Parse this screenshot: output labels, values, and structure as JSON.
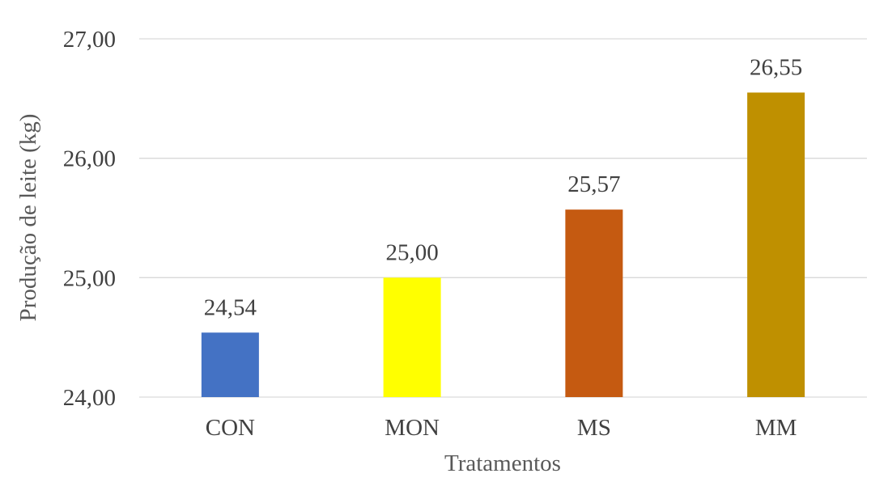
{
  "chart_data": {
    "type": "bar",
    "title": "",
    "xlabel": "Tratamentos",
    "ylabel": "Produção de leite (kg)",
    "categories": [
      "CON",
      "MON",
      "MS",
      "MM"
    ],
    "values": [
      24.54,
      25.0,
      25.57,
      26.55
    ],
    "value_labels": [
      "24,54",
      "25,00",
      "25,57",
      "26,55"
    ],
    "colors": [
      "#4472c4",
      "#ffff00",
      "#c55a11",
      "#bf9000"
    ],
    "ylim": [
      24,
      27
    ],
    "yticks": [
      24,
      25,
      26,
      27
    ],
    "ytick_labels": [
      "24,00",
      "25,00",
      "26,00",
      "27,00"
    ],
    "grid": true,
    "legend": "none"
  }
}
